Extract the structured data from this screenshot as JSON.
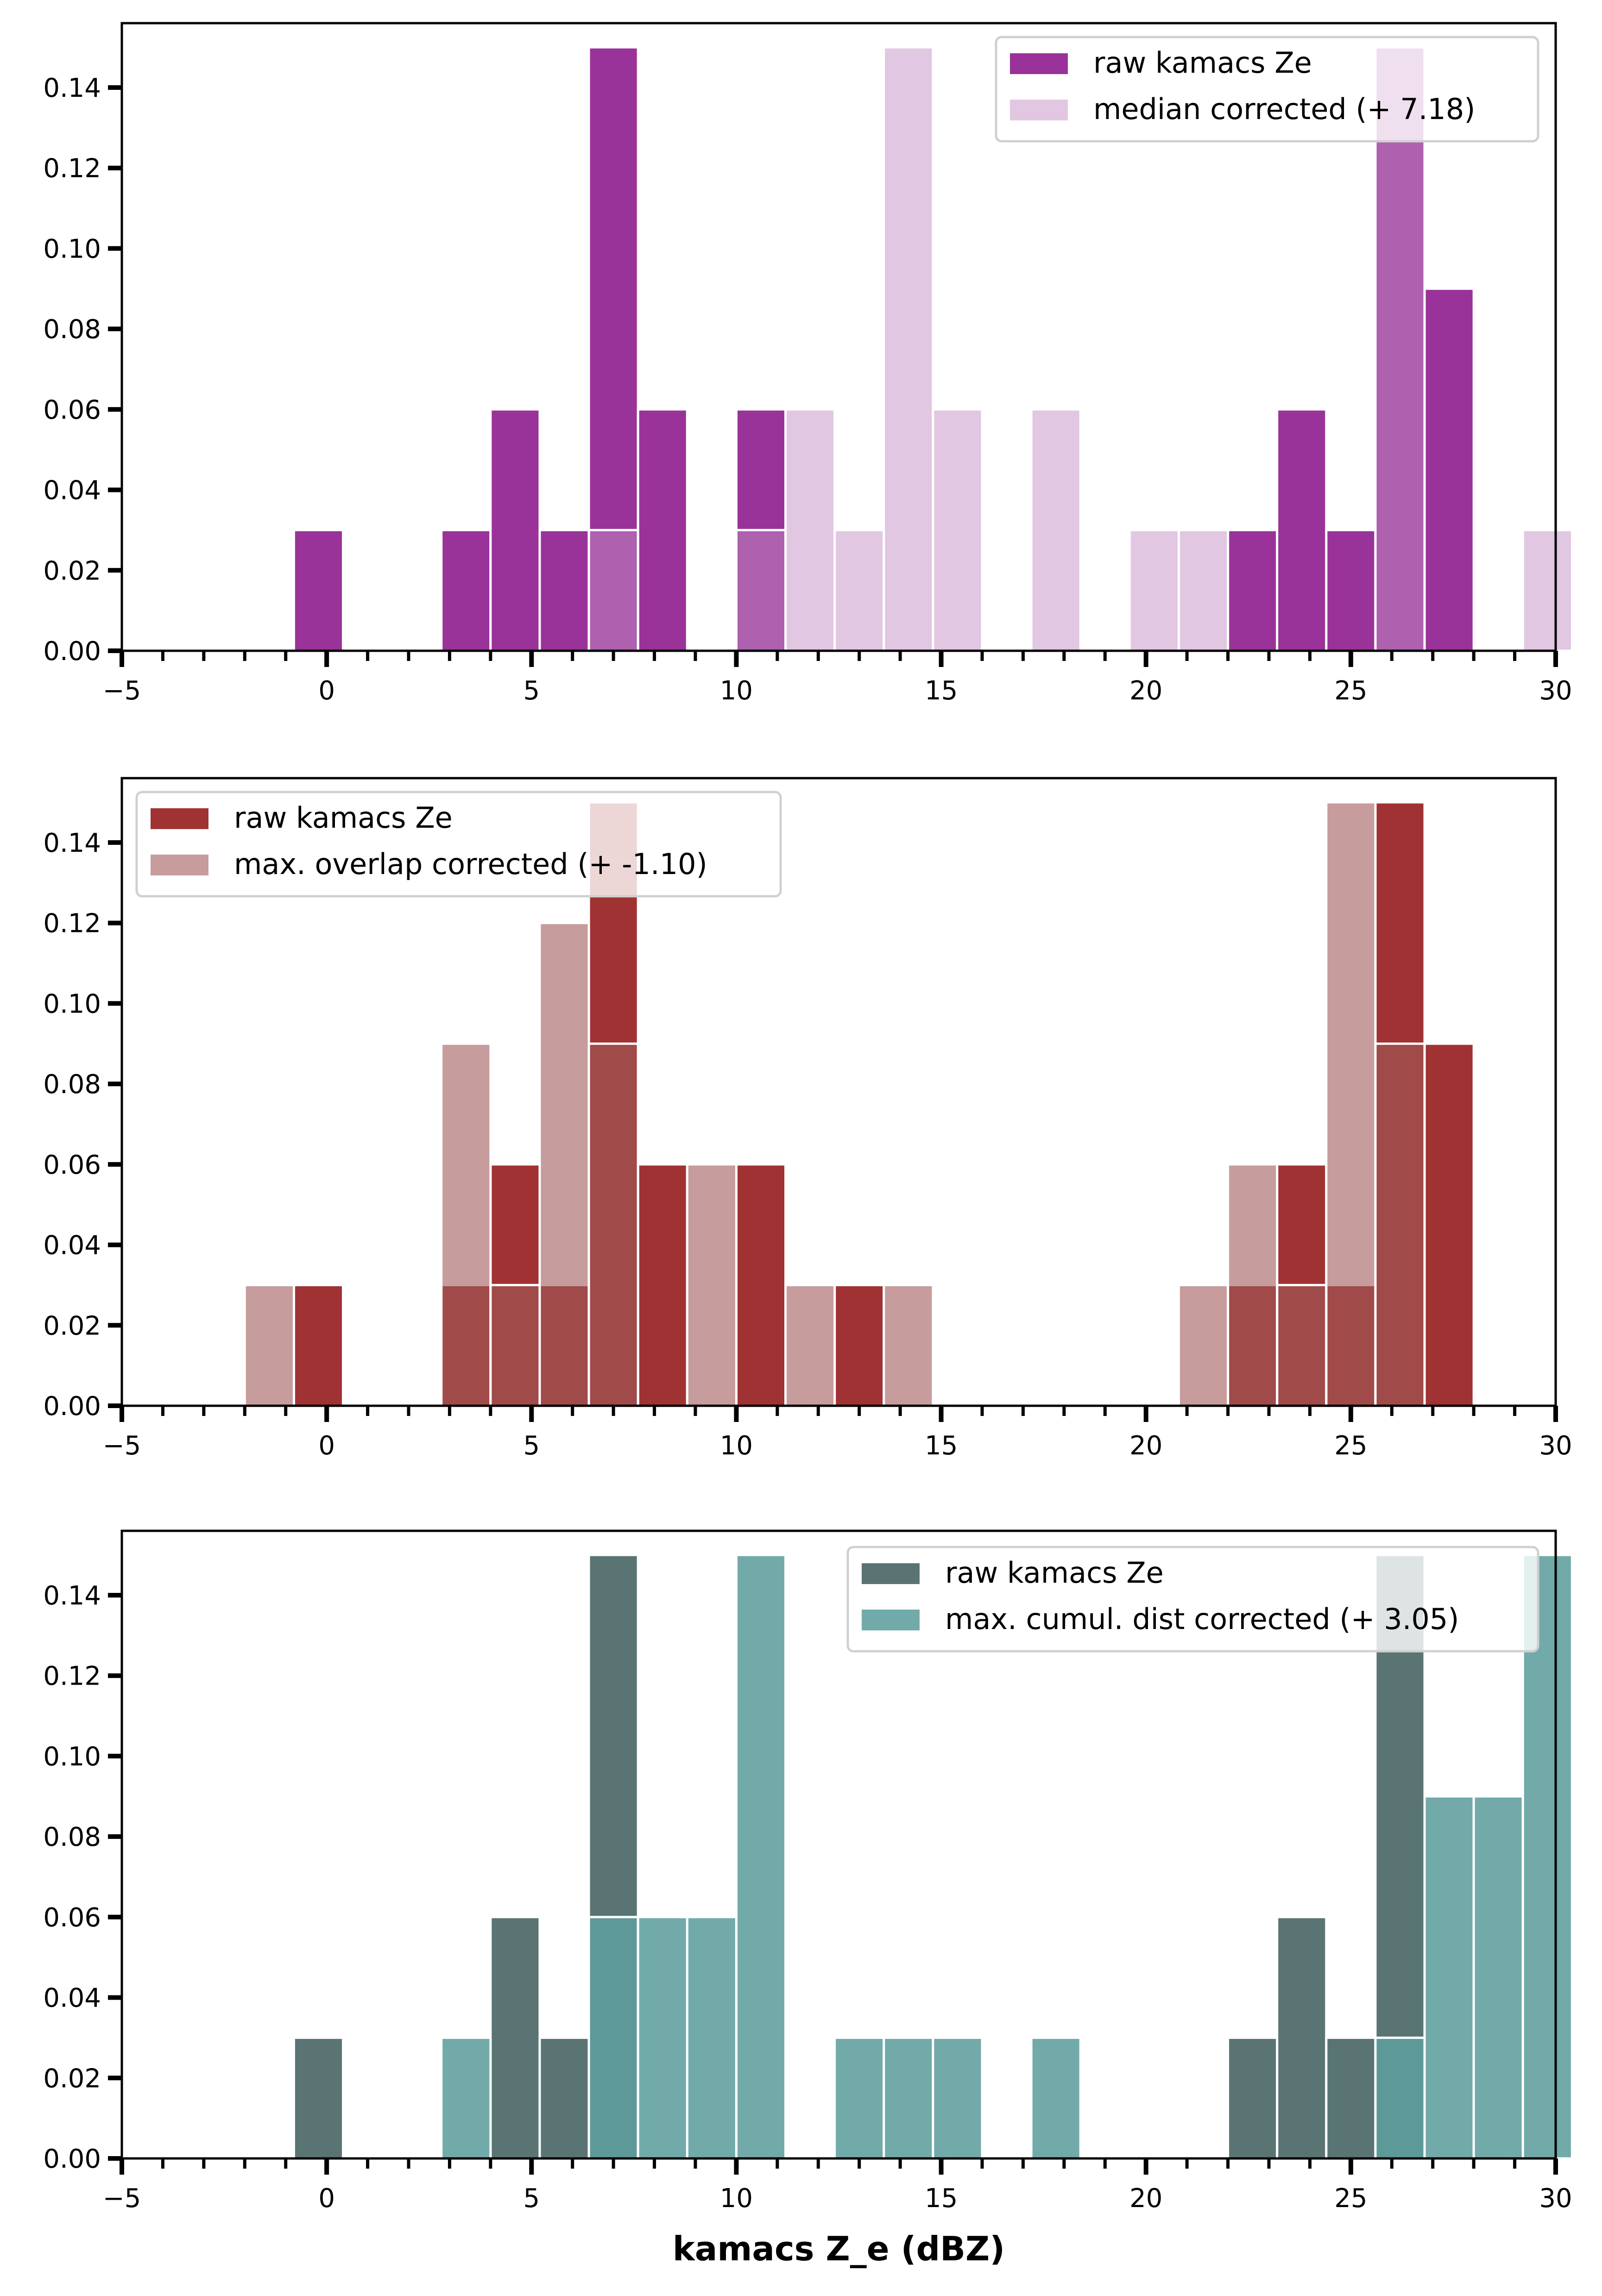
{
  "chart_data": [
    {
      "type": "bar",
      "subtype": "histogram",
      "xlim": [
        -5,
        30
      ],
      "ylim": [
        0,
        0.156
      ],
      "xticks": [
        "−5",
        "0",
        "5",
        "10",
        "15",
        "20",
        "25",
        "30"
      ],
      "yticks": [
        "0.00",
        "0.02",
        "0.04",
        "0.06",
        "0.08",
        "0.10",
        "0.12",
        "0.14"
      ],
      "bin_width": 1.2,
      "legend_position": "top-right",
      "series": [
        {
          "name": "raw kamacs Ze",
          "color": "#993399",
          "opacity": 1.0,
          "bins": [
            [
              -0.2,
              0.03
            ],
            [
              3.4,
              0.03
            ],
            [
              4.6,
              0.06
            ],
            [
              5.8,
              0.03
            ],
            [
              7.0,
              0.15
            ],
            [
              8.2,
              0.06
            ],
            [
              10.6,
              0.06
            ],
            [
              22.6,
              0.03
            ],
            [
              23.8,
              0.06
            ],
            [
              25.0,
              0.03
            ],
            [
              26.2,
              0.15
            ],
            [
              27.4,
              0.09
            ]
          ]
        },
        {
          "name": "median corrected (+ 7.18)",
          "color": "#c490c4",
          "opacity": 0.5,
          "bins": [
            [
              7.0,
              0.03
            ],
            [
              10.6,
              0.03
            ],
            [
              11.8,
              0.06
            ],
            [
              13.0,
              0.03
            ],
            [
              14.2,
              0.15
            ],
            [
              15.4,
              0.06
            ],
            [
              17.8,
              0.06
            ],
            [
              20.2,
              0.03
            ],
            [
              21.4,
              0.03
            ],
            [
              26.2,
              0.15
            ],
            [
              29.8,
              0.03
            ]
          ]
        }
      ],
      "xlabel": ""
    },
    {
      "type": "bar",
      "subtype": "histogram",
      "xlim": [
        -5,
        30
      ],
      "ylim": [
        0,
        0.156
      ],
      "xticks": [
        "−5",
        "0",
        "5",
        "10",
        "15",
        "20",
        "25",
        "30"
      ],
      "yticks": [
        "0.00",
        "0.02",
        "0.04",
        "0.06",
        "0.08",
        "0.10",
        "0.12",
        "0.14"
      ],
      "bin_width": 1.2,
      "legend_position": "top-left",
      "series": [
        {
          "name": "raw kamacs Ze",
          "color": "#a03234",
          "opacity": 1.0,
          "bins": [
            [
              -0.2,
              0.03
            ],
            [
              3.4,
              0.03
            ],
            [
              4.6,
              0.06
            ],
            [
              5.8,
              0.03
            ],
            [
              7.0,
              0.15
            ],
            [
              8.2,
              0.06
            ],
            [
              10.6,
              0.06
            ],
            [
              13.0,
              0.03
            ],
            [
              22.6,
              0.03
            ],
            [
              23.8,
              0.06
            ],
            [
              25.0,
              0.03
            ],
            [
              26.2,
              0.15
            ],
            [
              27.4,
              0.09
            ]
          ]
        },
        {
          "name": "max. overlap corrected (+ -1.10)",
          "color": "#a05a5a",
          "opacity": 0.6,
          "bins": [
            [
              -1.4,
              0.03
            ],
            [
              3.4,
              0.09
            ],
            [
              4.6,
              0.03
            ],
            [
              5.8,
              0.12
            ],
            [
              7.0,
              0.09
            ],
            [
              9.4,
              0.06
            ],
            [
              11.8,
              0.03
            ],
            [
              14.2,
              0.03
            ],
            [
              21.4,
              0.03
            ],
            [
              22.6,
              0.06
            ],
            [
              23.8,
              0.03
            ],
            [
              25.0,
              0.15
            ],
            [
              26.2,
              0.09
            ]
          ]
        }
      ],
      "xlabel": ""
    },
    {
      "type": "bar",
      "subtype": "histogram",
      "xlim": [
        -5,
        30
      ],
      "ylim": [
        0,
        0.156
      ],
      "xticks": [
        "−5",
        "0",
        "5",
        "10",
        "15",
        "20",
        "25",
        "30"
      ],
      "yticks": [
        "0.00",
        "0.02",
        "0.04",
        "0.06",
        "0.08",
        "0.10",
        "0.12",
        "0.14"
      ],
      "bin_width": 1.2,
      "legend_position": "top-right",
      "series": [
        {
          "name": "raw kamacs Ze",
          "color": "#5a7474",
          "opacity": 1.0,
          "bins": [
            [
              -0.2,
              0.03
            ],
            [
              4.6,
              0.06
            ],
            [
              5.8,
              0.03
            ],
            [
              7.0,
              0.15
            ],
            [
              22.6,
              0.03
            ],
            [
              23.8,
              0.06
            ],
            [
              25.0,
              0.03
            ],
            [
              26.2,
              0.15
            ]
          ]
        },
        {
          "name": "max. cumul. dist corrected (+ 3.05)",
          "color": "#5f9e9e",
          "opacity": 0.88,
          "bins": [
            [
              3.4,
              0.03
            ],
            [
              7.0,
              0.06
            ],
            [
              8.2,
              0.06
            ],
            [
              9.4,
              0.06
            ],
            [
              10.6,
              0.15
            ],
            [
              13.0,
              0.03
            ],
            [
              14.2,
              0.03
            ],
            [
              15.4,
              0.03
            ],
            [
              17.8,
              0.03
            ],
            [
              26.2,
              0.03
            ],
            [
              27.4,
              0.09
            ],
            [
              28.6,
              0.09
            ],
            [
              29.8,
              0.15
            ]
          ]
        }
      ],
      "xlabel": "kamacs Z_e (dBZ)"
    }
  ]
}
